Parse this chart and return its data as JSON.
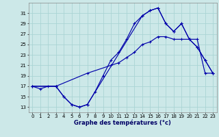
{
  "title": "Graphe des températures (°c)",
  "bg_color": "#cce8e8",
  "grid_color": "#aad4d4",
  "line_color": "#0000aa",
  "xlim": [
    -0.5,
    23.5
  ],
  "ylim": [
    12,
    33
  ],
  "x_ticks": [
    0,
    1,
    2,
    3,
    4,
    5,
    6,
    7,
    8,
    9,
    10,
    11,
    12,
    13,
    14,
    15,
    16,
    17,
    18,
    19,
    20,
    21,
    22,
    23
  ],
  "y_ticks": [
    13,
    15,
    17,
    19,
    21,
    23,
    25,
    27,
    29,
    31
  ],
  "line1_x": [
    0,
    1,
    2,
    3,
    4,
    5,
    6,
    7,
    8,
    9,
    10,
    11,
    12,
    13,
    14,
    15,
    16,
    17,
    18,
    19,
    20,
    21,
    22,
    23
  ],
  "line1_y": [
    17,
    16.5,
    17,
    17,
    15,
    13.5,
    13,
    13.5,
    16,
    19,
    22,
    23.5,
    26,
    29,
    30.5,
    31.5,
    32,
    29,
    27.5,
    29,
    26,
    24.5,
    22,
    19.5
  ],
  "line2_x": [
    0,
    3,
    7,
    10,
    11,
    12,
    13,
    14,
    15,
    16,
    17,
    18,
    19,
    20,
    21,
    22,
    23
  ],
  "line2_y": [
    17,
    17,
    19.5,
    21,
    21.5,
    22.5,
    23.5,
    25,
    25.5,
    26.5,
    26.5,
    26,
    26,
    26,
    26,
    19.5,
    19.5
  ],
  "line3_x": [
    0,
    3,
    4,
    5,
    6,
    7,
    14,
    15,
    16,
    17,
    18,
    19,
    20,
    21,
    22,
    23
  ],
  "line3_y": [
    17,
    17,
    15,
    13.5,
    13,
    13.5,
    30.5,
    31.5,
    32,
    29,
    27.5,
    29,
    26,
    24.5,
    22,
    19.5
  ]
}
